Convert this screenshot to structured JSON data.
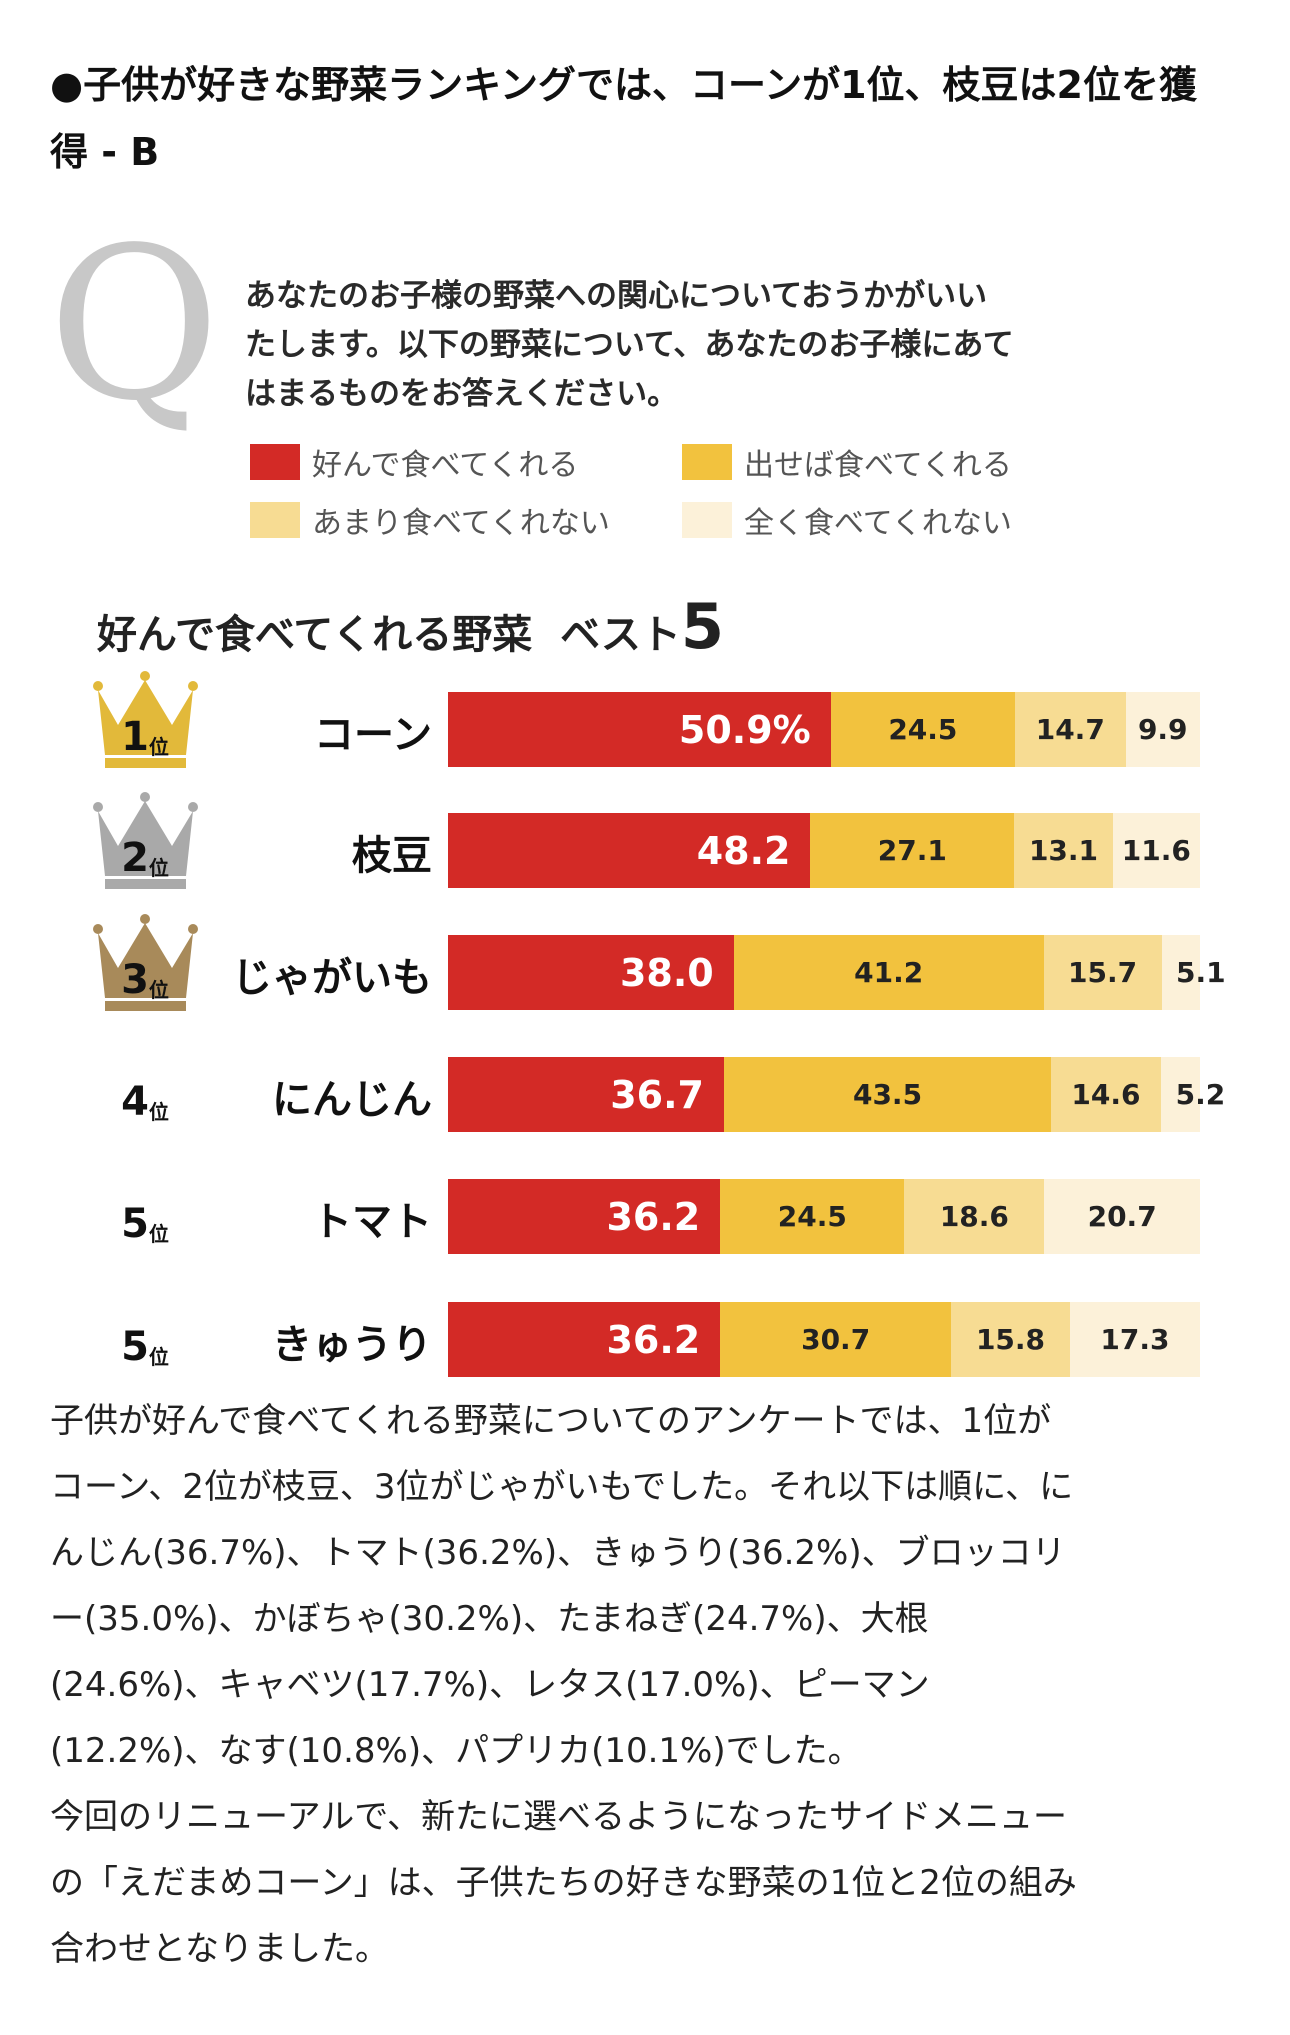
{
  "headline": [
    "●子供が好きな野菜ランキングでは、コーンが1位、枝豆は2位を獲",
    "得 - B"
  ],
  "q_letter": "Q",
  "question_lines": [
    "あなたのお子様の野菜への関心についておうかがいい",
    "たします。以下の野菜について、あなたのお子様にあて",
    "はまるものをお答えください。"
  ],
  "chart_data": {
    "type": "bar",
    "orientation": "horizontal-stacked-100",
    "title": "好んで食べてくれる野菜",
    "title_suffix": "ベスト",
    "title_num": "5",
    "legend_placement": "top",
    "series": [
      {
        "name": "好んで食べてくれる",
        "color": "#d32a26",
        "values": [
          50.9,
          48.2,
          38.0,
          36.7,
          36.2,
          36.2
        ]
      },
      {
        "name": "出せば食べてくれる",
        "color": "#f2c23e",
        "values": [
          24.5,
          27.1,
          41.2,
          43.5,
          24.5,
          30.7
        ]
      },
      {
        "name": "あまり食べてくれない",
        "color": "#f7dc93",
        "values": [
          14.7,
          13.1,
          15.7,
          14.6,
          18.6,
          15.8
        ]
      },
      {
        "name": "全く食べてくれない",
        "color": "#fcf1d9",
        "values": [
          9.9,
          11.6,
          5.1,
          5.2,
          20.7,
          17.3
        ]
      }
    ],
    "categories": [
      "コーン",
      "枝豆",
      "じゃがいも",
      "にんじん",
      "トマト",
      "きゅうり"
    ],
    "ranks": [
      "1",
      "2",
      "3",
      "4",
      "5",
      "5"
    ],
    "rank_suffix": "位",
    "labels": [
      [
        "50.9%",
        "24.5",
        "14.7",
        "9.9"
      ],
      [
        "48.2",
        "27.1",
        "13.1",
        "11.6"
      ],
      [
        "38.0",
        "41.2",
        "15.7",
        "5.1"
      ],
      [
        "36.7",
        "43.5",
        "14.6",
        "5.2"
      ],
      [
        "36.2",
        "24.5",
        "18.6",
        "20.7"
      ],
      [
        "36.2",
        "30.7",
        "15.8",
        "17.3"
      ]
    ],
    "crown_colors": [
      "#e2b93a",
      "#a9a9a9",
      "#a88a5a"
    ]
  },
  "body_lines": [
    "子供が好んで食べてくれる野菜についてのアンケートでは、1位が",
    "コーン、2位が枝豆、3位がじゃがいもでした。それ以下は順に、に",
    "んじん(36.7%)、トマト(36.2%)、きゅうり(36.2%)、ブロッコリ",
    "ー(35.0%)、かぼちゃ(30.2%)、たまねぎ(24.7%)、大根",
    "(24.6%)、キャベツ(17.7%)、レタス(17.0%)、ピーマン",
    "(12.2%)、なす(10.8%)、パプリカ(10.1%)でした。",
    "今回のリニューアルで、新たに選べるようになったサイドメニュー",
    "の「えだまめコーン」は、子供たちの好きな野菜の1位と2位の組み",
    "合わせとなりました。"
  ]
}
